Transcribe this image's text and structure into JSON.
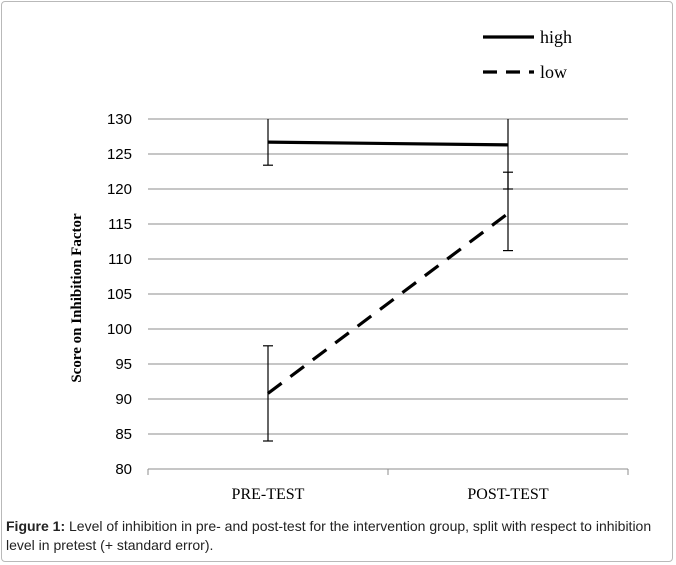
{
  "caption": {
    "label": "Figure 1:",
    "text": " Level of inhibition in pre- and post-test for the intervention group, split with respect to inhibition level in pretest (+ standard error)."
  },
  "chart_data": {
    "type": "line",
    "title": "",
    "xlabel": "",
    "ylabel": "Score on Inhibition Factor",
    "categories": [
      "PRE-TEST",
      "POST-TEST"
    ],
    "ylim": [
      80,
      130
    ],
    "yticks": [
      80,
      85,
      90,
      95,
      100,
      105,
      110,
      115,
      120,
      125,
      130
    ],
    "grid": true,
    "legend_position": "top-right",
    "series": [
      {
        "name": "high",
        "style": "solid",
        "color": "#000000",
        "values": [
          126.7,
          126.3
        ],
        "err_low": [
          123.4,
          120.0
        ],
        "err_high": [
          130.0,
          130.0
        ]
      },
      {
        "name": "low",
        "style": "dashed",
        "color": "#000000",
        "values": [
          90.8,
          116.5
        ],
        "err_low": [
          84.0,
          111.2
        ],
        "err_high": [
          97.6,
          122.4
        ]
      }
    ]
  }
}
